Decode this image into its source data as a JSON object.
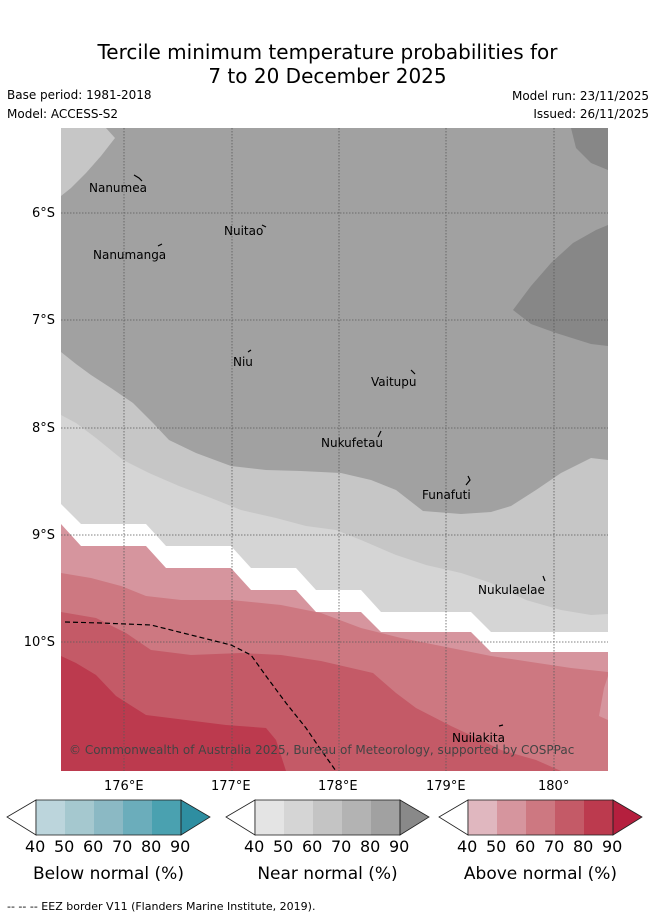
{
  "header": {
    "title_line1": "Tercile minimum temperature probabilities for",
    "title_line2": "7 to 20 December 2025",
    "base_period": "Base period: 1981-2018",
    "model": "Model: ACCESS-S2",
    "model_run": "Model run: 23/11/2025",
    "issued": "Issued: 26/11/2025"
  },
  "map": {
    "lat_ticks": [
      "6°S",
      "7°S",
      "8°S",
      "9°S",
      "10°S"
    ],
    "lon_ticks": [
      "176°E",
      "177°E",
      "178°E",
      "179°E",
      "180°"
    ],
    "places": [
      "Nanumea",
      "Nuitao",
      "Nanumanga",
      "Niu",
      "Vaitupu",
      "Nukufetau",
      "Funafuti",
      "Nukulaelae",
      "Nuilakita"
    ],
    "attribution": "© Commonwealth of Australia 2025, Bureau of Meteorology, supported by COSPPac"
  },
  "legend": {
    "below": {
      "title": "Below normal (%)",
      "ticks": [
        "40",
        "50",
        "60",
        "70",
        "80",
        "90"
      ],
      "colors": [
        "#ffffff",
        "#bcd5dc",
        "#a5c8cf",
        "#8bb9c4",
        "#6badbb",
        "#4aa1b0",
        "#2e8ea1"
      ]
    },
    "near": {
      "title": "Near normal (%)",
      "ticks": [
        "40",
        "50",
        "60",
        "70",
        "80",
        "90"
      ],
      "colors": [
        "#ffffff",
        "#e4e4e4",
        "#d5d5d5",
        "#c4c4c4",
        "#b3b3b3",
        "#a1a1a1",
        "#898989"
      ]
    },
    "above": {
      "title": "Above normal (%)",
      "ticks": [
        "40",
        "50",
        "60",
        "70",
        "80",
        "90"
      ],
      "colors": [
        "#ffffff",
        "#e0b7bf",
        "#d6959e",
        "#cd7881",
        "#c45a67",
        "#bc3a4e",
        "#b51f3e"
      ]
    }
  },
  "footer": {
    "eez": "--  --  -- EEZ border V11 (Flanders Marine Institute, 2019)."
  }
}
